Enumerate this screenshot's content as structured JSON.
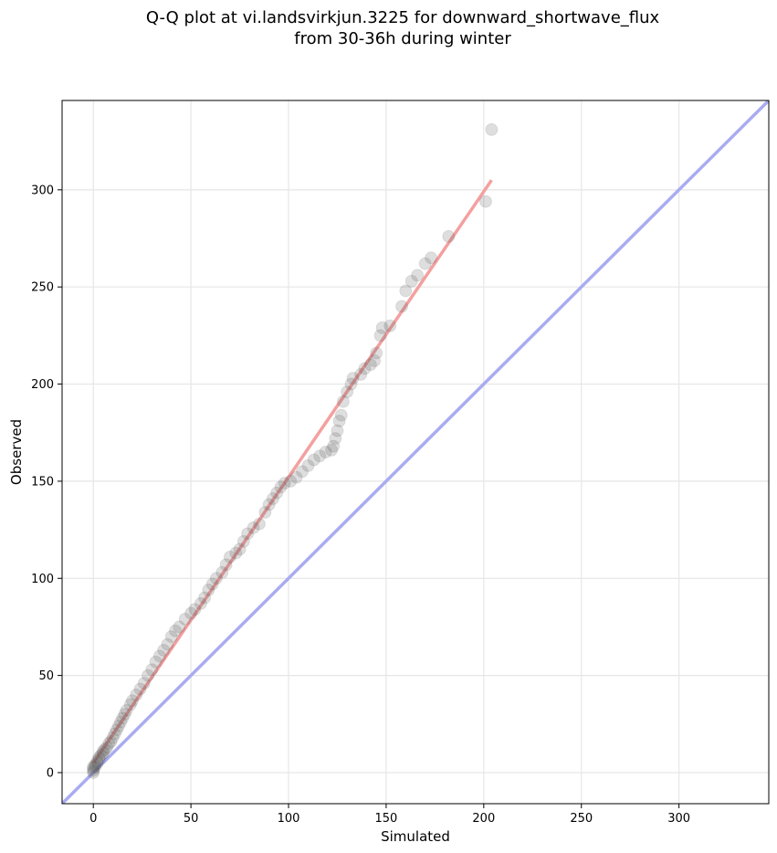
{
  "chart_data": {
    "type": "scatter",
    "title_line1": "Q-Q plot at vi.landsvirkjun.3225 for downward_shortwave_flux",
    "title_line2": "from 30-36h during winter",
    "xlabel": "Simulated",
    "ylabel": "Observed",
    "xlim": [
      -16,
      346
    ],
    "ylim": [
      -16,
      346
    ],
    "xticks": [
      0,
      50,
      100,
      150,
      200,
      250,
      300
    ],
    "yticks": [
      0,
      50,
      100,
      150,
      200,
      250,
      300
    ],
    "grid": true,
    "fit_line": {
      "color": "#f4a0a0",
      "x": [
        0,
        204
      ],
      "y": [
        5,
        305
      ]
    },
    "identity_line": {
      "color": "#a9acf0"
    },
    "points": [
      [
        0,
        0
      ],
      [
        0,
        1
      ],
      [
        0,
        2
      ],
      [
        0,
        3
      ],
      [
        1,
        3
      ],
      [
        1,
        4
      ],
      [
        2,
        5
      ],
      [
        2,
        6
      ],
      [
        3,
        7
      ],
      [
        3,
        8
      ],
      [
        4,
        9
      ],
      [
        5,
        10
      ],
      [
        5,
        11
      ],
      [
        6,
        12
      ],
      [
        7,
        13
      ],
      [
        8,
        15
      ],
      [
        9,
        16
      ],
      [
        10,
        18
      ],
      [
        11,
        20
      ],
      [
        12,
        22
      ],
      [
        13,
        24
      ],
      [
        14,
        26
      ],
      [
        15,
        28
      ],
      [
        16,
        30
      ],
      [
        17,
        32
      ],
      [
        19,
        35
      ],
      [
        20,
        37
      ],
      [
        22,
        40
      ],
      [
        24,
        43
      ],
      [
        26,
        46
      ],
      [
        28,
        50
      ],
      [
        30,
        53
      ],
      [
        32,
        57
      ],
      [
        34,
        60
      ],
      [
        36,
        63
      ],
      [
        38,
        66
      ],
      [
        40,
        70
      ],
      [
        42,
        73
      ],
      [
        44,
        75
      ],
      [
        47,
        79
      ],
      [
        50,
        82
      ],
      [
        52,
        84
      ],
      [
        55,
        87
      ],
      [
        57,
        90
      ],
      [
        59,
        94
      ],
      [
        61,
        97
      ],
      [
        63,
        100
      ],
      [
        66,
        103
      ],
      [
        68,
        107
      ],
      [
        70,
        111
      ],
      [
        73,
        113
      ],
      [
        75,
        115
      ],
      [
        77,
        119
      ],
      [
        79,
        123
      ],
      [
        82,
        126
      ],
      [
        85,
        128
      ],
      [
        88,
        134
      ],
      [
        90,
        138
      ],
      [
        92,
        141
      ],
      [
        94,
        144
      ],
      [
        96,
        147
      ],
      [
        98,
        149
      ],
      [
        101,
        150
      ],
      [
        104,
        152
      ],
      [
        107,
        155
      ],
      [
        110,
        158
      ],
      [
        113,
        161
      ],
      [
        116,
        163
      ],
      [
        119,
        165
      ],
      [
        122,
        166
      ],
      [
        123,
        168
      ],
      [
        124,
        172
      ],
      [
        125,
        176
      ],
      [
        126,
        181
      ],
      [
        127,
        184
      ],
      [
        128,
        191
      ],
      [
        130,
        196
      ],
      [
        132,
        200
      ],
      [
        133,
        203
      ],
      [
        137,
        205
      ],
      [
        139,
        208
      ],
      [
        142,
        210
      ],
      [
        144,
        212
      ],
      [
        145,
        216
      ],
      [
        147,
        225
      ],
      [
        148,
        229
      ],
      [
        152,
        230
      ],
      [
        158,
        240
      ],
      [
        160,
        248
      ],
      [
        163,
        253
      ],
      [
        166,
        256
      ],
      [
        170,
        262
      ],
      [
        173,
        265
      ],
      [
        182,
        276
      ],
      [
        201,
        294
      ],
      [
        204,
        331
      ]
    ]
  }
}
